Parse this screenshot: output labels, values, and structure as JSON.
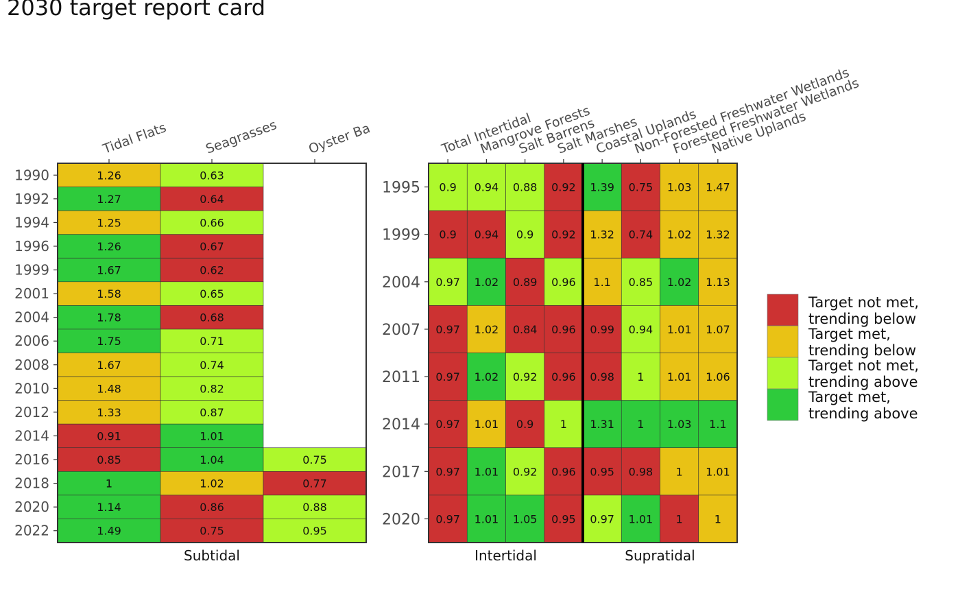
{
  "title": "2030 target report card",
  "colors": {
    "not_met_below": "#CC3232",
    "met_below": "#E9C215",
    "not_met_above": "#AEF82C",
    "met_above": "#2ECB3C"
  },
  "legend": {
    "placement": "right",
    "items": [
      {
        "key": "not_met_below",
        "line1": "Target not met,",
        "line2": "trending below"
      },
      {
        "key": "met_below",
        "line1": "Target met,",
        "line2": "trending below"
      },
      {
        "key": "not_met_above",
        "line1": "Target not met,",
        "line2": "trending above"
      },
      {
        "key": "met_above",
        "line1": "Target met,",
        "line2": "trending above"
      }
    ]
  },
  "chart_data": [
    {
      "type": "heatmap",
      "facet": "Subtidal",
      "columns": [
        "Tidal Flats",
        "Seagrasses",
        "Oyster Bars"
      ],
      "column_tick_labels": [
        "Tidal Flats",
        "Seagrasses",
        "Oyster Ba"
      ],
      "rows": [
        "1990",
        "1992",
        "1994",
        "1996",
        "1999",
        "2001",
        "2004",
        "2006",
        "2008",
        "2010",
        "2012",
        "2014",
        "2016",
        "2018",
        "2020",
        "2022"
      ],
      "values": [
        [
          1.26,
          0.63,
          null
        ],
        [
          1.27,
          0.64,
          null
        ],
        [
          1.25,
          0.66,
          null
        ],
        [
          1.26,
          0.67,
          null
        ],
        [
          1.67,
          0.62,
          null
        ],
        [
          1.58,
          0.65,
          null
        ],
        [
          1.78,
          0.68,
          null
        ],
        [
          1.75,
          0.71,
          null
        ],
        [
          1.67,
          0.74,
          null
        ],
        [
          1.48,
          0.82,
          null
        ],
        [
          1.33,
          0.87,
          null
        ],
        [
          0.91,
          1.01,
          null
        ],
        [
          0.85,
          1.04,
          0.75
        ],
        [
          1,
          1.02,
          0.77
        ],
        [
          1.14,
          0.86,
          0.88
        ],
        [
          1.49,
          0.75,
          0.95
        ]
      ],
      "status": [
        [
          "met_below",
          "not_met_above",
          null
        ],
        [
          "met_above",
          "not_met_below",
          null
        ],
        [
          "met_below",
          "not_met_above",
          null
        ],
        [
          "met_above",
          "not_met_below",
          null
        ],
        [
          "met_above",
          "not_met_below",
          null
        ],
        [
          "met_below",
          "not_met_above",
          null
        ],
        [
          "met_above",
          "not_met_below",
          null
        ],
        [
          "met_above",
          "not_met_above",
          null
        ],
        [
          "met_below",
          "not_met_above",
          null
        ],
        [
          "met_below",
          "not_met_above",
          null
        ],
        [
          "met_below",
          "not_met_above",
          null
        ],
        [
          "not_met_below",
          "met_above",
          null
        ],
        [
          "not_met_below",
          "met_above",
          "not_met_above"
        ],
        [
          "met_above",
          "met_below",
          "not_met_below"
        ],
        [
          "met_above",
          "not_met_below",
          "not_met_above"
        ],
        [
          "met_above",
          "not_met_below",
          "not_met_above"
        ]
      ]
    },
    {
      "type": "heatmap",
      "facets": [
        "Intertidal",
        "Supratidal"
      ],
      "facet_column_counts": [
        4,
        4
      ],
      "columns": [
        "Total Intertidal",
        "Mangrove Forests",
        "Salt Barrens",
        "Salt Marshes",
        "Coastal Uplands",
        "Non-Forested Freshwater Wetlands",
        "Forested Freshwater Wetlands",
        "Native Uplands"
      ],
      "rows": [
        "1995",
        "1999",
        "2004",
        "2007",
        "2011",
        "2014",
        "2017",
        "2020"
      ],
      "values": [
        [
          0.9,
          0.94,
          0.88,
          0.92,
          1.39,
          0.75,
          1.03,
          1.47
        ],
        [
          0.9,
          0.94,
          0.9,
          0.92,
          1.32,
          0.74,
          1.02,
          1.32
        ],
        [
          0.97,
          1.02,
          0.89,
          0.96,
          1.1,
          0.85,
          1.02,
          1.13
        ],
        [
          0.97,
          1.02,
          0.84,
          0.96,
          0.99,
          0.94,
          1.01,
          1.07
        ],
        [
          0.97,
          1.02,
          0.92,
          0.96,
          0.98,
          1,
          1.01,
          1.06
        ],
        [
          0.97,
          1.01,
          0.9,
          1,
          1.31,
          1,
          1.03,
          1.1
        ],
        [
          0.97,
          1.01,
          0.92,
          0.96,
          0.95,
          0.98,
          1,
          1.01
        ],
        [
          0.97,
          1.01,
          1.05,
          0.95,
          0.97,
          1.01,
          1,
          1
        ]
      ],
      "status": [
        [
          "not_met_above",
          "not_met_above",
          "not_met_above",
          "not_met_below",
          "met_above",
          "not_met_below",
          "met_below",
          "met_below"
        ],
        [
          "not_met_below",
          "not_met_below",
          "not_met_above",
          "not_met_below",
          "met_below",
          "not_met_below",
          "met_below",
          "met_below"
        ],
        [
          "not_met_above",
          "met_above",
          "not_met_below",
          "not_met_above",
          "met_below",
          "not_met_above",
          "met_above",
          "met_below"
        ],
        [
          "not_met_below",
          "met_below",
          "not_met_below",
          "not_met_below",
          "not_met_below",
          "not_met_above",
          "met_below",
          "met_below"
        ],
        [
          "not_met_below",
          "met_above",
          "not_met_above",
          "not_met_below",
          "not_met_below",
          "not_met_above",
          "met_below",
          "met_below"
        ],
        [
          "not_met_below",
          "met_below",
          "not_met_below",
          "not_met_above",
          "met_above",
          "met_above",
          "met_above",
          "met_above"
        ],
        [
          "not_met_below",
          "met_above",
          "not_met_above",
          "not_met_below",
          "not_met_below",
          "not_met_below",
          "met_below",
          "met_below"
        ],
        [
          "not_met_below",
          "met_above",
          "met_above",
          "not_met_below",
          "not_met_above",
          "met_above",
          "not_met_below",
          "met_below"
        ]
      ]
    }
  ]
}
